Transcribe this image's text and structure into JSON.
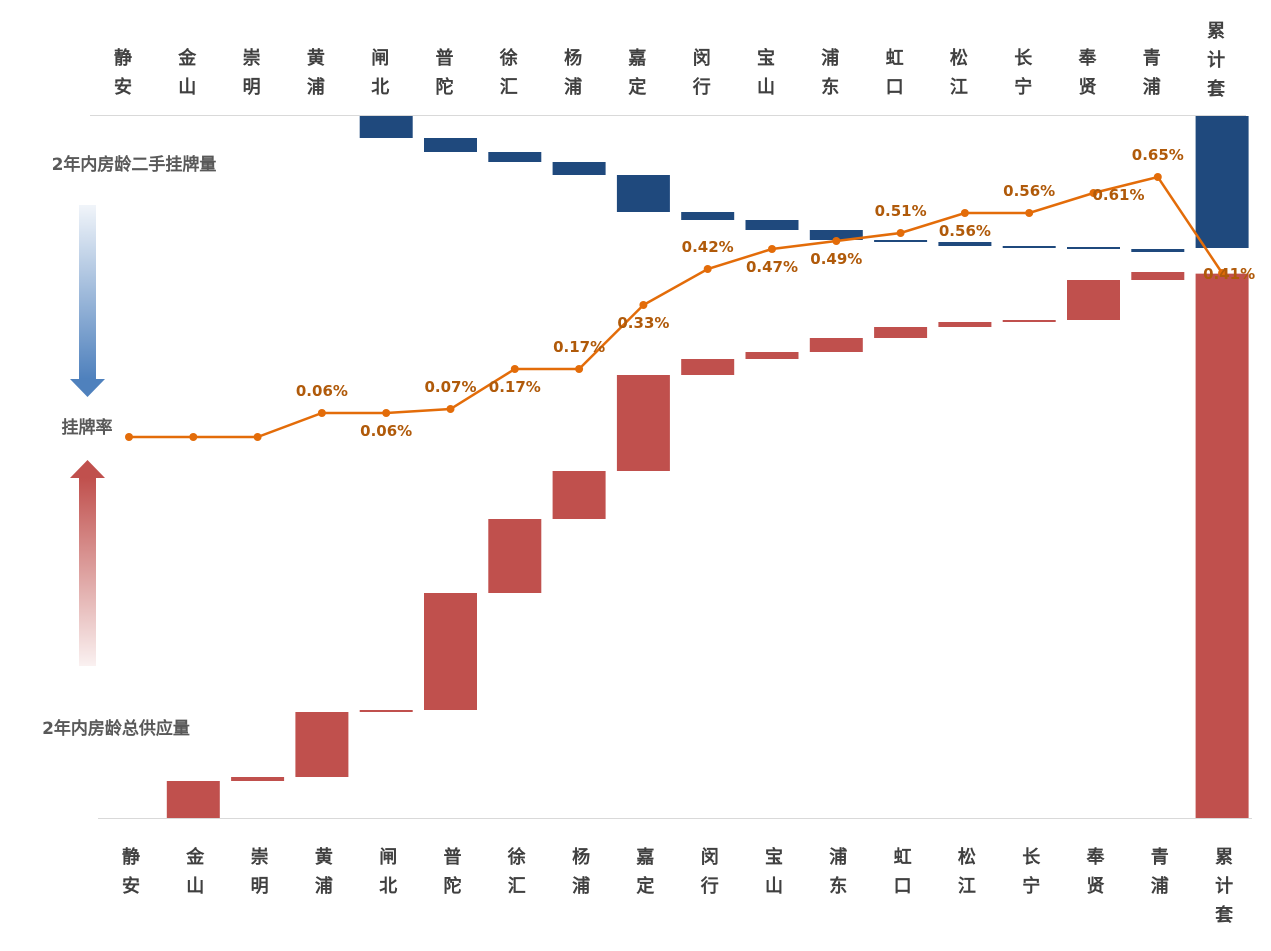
{
  "chart_data": {
    "type": "waterfall",
    "categories": [
      "静安",
      "金山",
      "崇明",
      "黄浦",
      "闸北",
      "普陀",
      "徐汇",
      "杨浦",
      "嘉定",
      "闵行",
      "宝山",
      "浦东",
      "虹口",
      "松江",
      "长宁",
      "奉贤",
      "青浦",
      "累计套"
    ],
    "row_labels": {
      "top": "2年内房龄二手挂牌量",
      "middle": "挂牌率",
      "bottom": "2年内房龄总供应量"
    },
    "series": [
      {
        "name": "2年内房龄二手挂牌量",
        "color": "#1f497d",
        "values": [
          0,
          0,
          0,
          0,
          22,
          14,
          10,
          13,
          37,
          8,
          10,
          10,
          2,
          4,
          1,
          2,
          3,
          132
        ]
      },
      {
        "name": "2年内房龄总供应量",
        "color": "#c0504d",
        "values": [
          0,
          37,
          4,
          65,
          2,
          117,
          74,
          48,
          96,
          16,
          7,
          14,
          11,
          5,
          2,
          40,
          8,
          546
        ]
      },
      {
        "name": "挂牌率",
        "color": "#e36c09",
        "values": [
          0.0,
          0.0,
          0.0,
          0.06,
          0.06,
          0.07,
          0.17,
          0.17,
          0.33,
          0.42,
          0.47,
          0.49,
          0.51,
          0.56,
          0.56,
          0.61,
          0.65,
          0.41
        ],
        "labels": [
          "",
          "",
          "",
          "0.06%",
          "0.06%",
          "0.07%",
          "0.17%",
          "0.17%",
          "0.33%",
          "0.42%",
          "0.47%",
          "0.49%",
          "0.51%",
          "0.56%",
          "0.56%",
          "0.61%",
          "0.65%",
          "0.41%"
        ]
      }
    ],
    "grid": false,
    "colors": {
      "listing": "#1f497d",
      "supply": "#c0504d",
      "rate": "#e36c09",
      "rate_label": "#b05a0a",
      "axis_line": "#d9d9d9"
    }
  }
}
